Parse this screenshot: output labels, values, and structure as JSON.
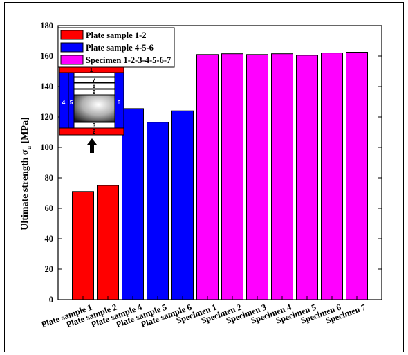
{
  "chart_data": {
    "type": "bar",
    "title": "",
    "xlabel": "",
    "ylabel": "Ultimate strength σ",
    "ylabel_subscript": "u",
    "ylabel_unit": " [MPa]",
    "ylim": [
      0,
      180
    ],
    "yticks": [
      0,
      20,
      40,
      60,
      80,
      100,
      120,
      140,
      160,
      180
    ],
    "grid": false,
    "legend_position": "top-left",
    "categories": [
      "Plate sample 1",
      "Plate sample 2",
      "Plate sample 4",
      "Plate sample 5",
      "Plate sample 6",
      "Specimen 1",
      "Specimen 2",
      "Specimen 3",
      "Specimen 4",
      "Specimen 5",
      "Specimen 6",
      "Specimen 7"
    ],
    "values": [
      71,
      75,
      125.5,
      116.5,
      124,
      161,
      161.5,
      161,
      161.5,
      160.5,
      162,
      162.5
    ],
    "bar_series_index": [
      0,
      0,
      1,
      1,
      1,
      2,
      2,
      2,
      2,
      2,
      2,
      2
    ],
    "series": [
      {
        "name": "Plate sample 1-2",
        "color": "#ff0000"
      },
      {
        "name": "Plate sample 4-5-6",
        "color": "#0000ff"
      },
      {
        "name": "Specimen 1-2-3-4-5-6-7",
        "color": "#ff00ff"
      }
    ],
    "inset": {
      "labels_top": [
        "1",
        "7",
        "8",
        "9"
      ],
      "label_left_outer": "4",
      "label_left_inner": "5",
      "label_right": "6",
      "label_bottom_inner": "3",
      "label_bottom_outer": "2",
      "arrow_icon": "up-arrow-icon"
    }
  }
}
